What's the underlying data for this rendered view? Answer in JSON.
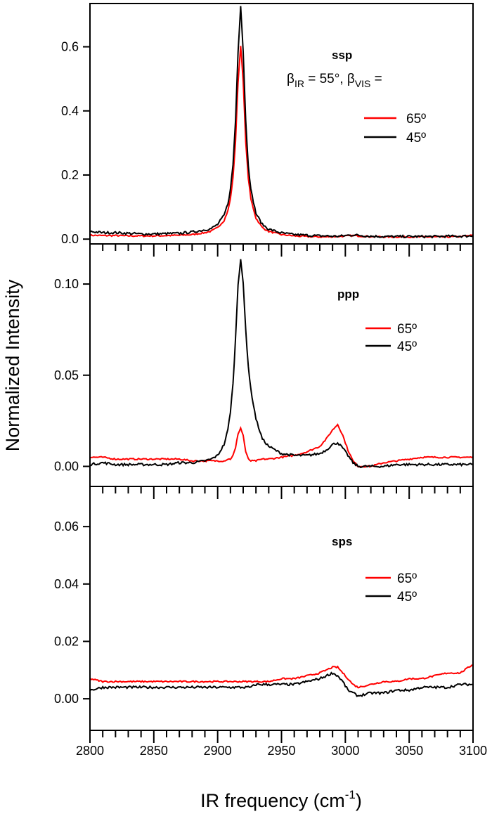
{
  "chart_data": [
    {
      "type": "line",
      "panel_label": "ssp",
      "annotation": {
        "beta": "β",
        "ir_sub": "IR",
        "ir_text": " = 55°,  ",
        "vis_sub": "VIS",
        "vis_text": " ="
      },
      "ylim": [
        -0.015,
        0.735
      ],
      "yticks": [
        0.0,
        0.2,
        0.4,
        0.6
      ],
      "ytick_labels": [
        "0.0",
        "0.2",
        "0.4",
        "0.6"
      ],
      "legend_placement": "right",
      "x": [
        2800,
        2810,
        2820,
        2830,
        2840,
        2850,
        2860,
        2870,
        2880,
        2890,
        2895,
        2900,
        2905,
        2908,
        2910,
        2912,
        2914,
        2916,
        2918,
        2920,
        2922,
        2924,
        2926,
        2930,
        2935,
        2940,
        2950,
        2960,
        2970,
        2980,
        2985,
        2990,
        2994,
        2998,
        3002,
        3006,
        3010,
        3020,
        3030,
        3040,
        3050,
        3060,
        3070,
        3080,
        3090,
        3100
      ],
      "series": [
        {
          "name": "65º",
          "color": "#ff0000",
          "values": [
            0.012,
            0.011,
            0.011,
            0.01,
            0.01,
            0.01,
            0.011,
            0.012,
            0.014,
            0.02,
            0.025,
            0.036,
            0.058,
            0.088,
            0.125,
            0.19,
            0.305,
            0.49,
            0.605,
            0.49,
            0.305,
            0.19,
            0.125,
            0.065,
            0.036,
            0.024,
            0.014,
            0.01,
            0.008,
            0.007,
            0.007,
            0.008,
            0.008,
            0.009,
            0.01,
            0.011,
            0.01,
            0.008,
            0.007,
            0.007,
            0.007,
            0.007,
            0.007,
            0.007,
            0.008,
            0.012
          ]
        },
        {
          "name": "45º",
          "color": "#000000",
          "values": [
            0.024,
            0.02,
            0.02,
            0.018,
            0.016,
            0.016,
            0.017,
            0.018,
            0.022,
            0.029,
            0.033,
            0.046,
            0.074,
            0.111,
            0.154,
            0.232,
            0.37,
            0.586,
            0.73,
            0.586,
            0.37,
            0.232,
            0.154,
            0.08,
            0.046,
            0.031,
            0.019,
            0.014,
            0.012,
            0.01,
            0.01,
            0.009,
            0.009,
            0.01,
            0.012,
            0.013,
            0.012,
            0.009,
            0.008,
            0.008,
            0.008,
            0.008,
            0.008,
            0.009,
            0.009,
            0.01
          ]
        }
      ]
    },
    {
      "type": "line",
      "panel_label": "ppp",
      "ylim": [
        -0.011,
        0.122
      ],
      "yticks": [
        0.0,
        0.05,
        0.1
      ],
      "ytick_labels": [
        "0.00",
        "0.05",
        "0.10"
      ],
      "legend_placement": "right",
      "x": [
        2800,
        2810,
        2820,
        2830,
        2840,
        2850,
        2860,
        2870,
        2880,
        2890,
        2895,
        2900,
        2905,
        2908,
        2910,
        2912,
        2914,
        2916,
        2918,
        2920,
        2922,
        2924,
        2926,
        2930,
        2935,
        2940,
        2950,
        2960,
        2970,
        2980,
        2985,
        2990,
        2994,
        2998,
        3002,
        3006,
        3010,
        3020,
        3030,
        3040,
        3050,
        3060,
        3070,
        3080,
        3090,
        3100
      ],
      "series": [
        {
          "name": "65º",
          "color": "#ff0000",
          "values": [
            0.005,
            0.005,
            0.004,
            0.004,
            0.004,
            0.004,
            0.004,
            0.004,
            0.003,
            0.003,
            0.003,
            0.003,
            0.003,
            0.004,
            0.004,
            0.006,
            0.01,
            0.018,
            0.021,
            0.017,
            0.008,
            0.004,
            0.003,
            0.003,
            0.004,
            0.004,
            0.005,
            0.006,
            0.008,
            0.011,
            0.015,
            0.02,
            0.023,
            0.017,
            0.009,
            0.003,
            0.0,
            0.0,
            0.002,
            0.003,
            0.004,
            0.005,
            0.005,
            0.005,
            0.005,
            0.005
          ]
        },
        {
          "name": "45º",
          "color": "#000000",
          "values": [
            0.001,
            0.002,
            0.001,
            0.001,
            0.001,
            0.001,
            0.001,
            0.002,
            0.002,
            0.003,
            0.004,
            0.006,
            0.012,
            0.02,
            0.03,
            0.045,
            0.07,
            0.1,
            0.114,
            0.1,
            0.075,
            0.055,
            0.042,
            0.026,
            0.015,
            0.011,
            0.007,
            0.006,
            0.006,
            0.007,
            0.009,
            0.012,
            0.013,
            0.01,
            0.006,
            0.002,
            0.0,
            0.0,
            0.0,
            0.001,
            0.001,
            0.001,
            0.001,
            0.001,
            0.001,
            0.001
          ]
        }
      ]
    },
    {
      "type": "line",
      "panel_label": "sps",
      "ylim": [
        -0.011,
        0.074
      ],
      "yticks": [
        0.0,
        0.02,
        0.04,
        0.06
      ],
      "ytick_labels": [
        "0.00",
        "0.02",
        "0.04",
        "0.06"
      ],
      "legend_placement": "right",
      "xlabel": "IR frequency (cm",
      "xlabel_sup": "-1",
      "xlabel_end": ")",
      "xlim": [
        2800,
        3100
      ],
      "xticks": [
        2800,
        2850,
        2900,
        2950,
        3000,
        3050,
        3100
      ],
      "xtick_labels": [
        "2800",
        "2850",
        "2900",
        "2950",
        "3000",
        "3050",
        "3100"
      ],
      "x": [
        2800,
        2810,
        2820,
        2830,
        2840,
        2850,
        2860,
        2870,
        2880,
        2890,
        2895,
        2900,
        2905,
        2908,
        2910,
        2912,
        2914,
        2916,
        2918,
        2920,
        2922,
        2924,
        2926,
        2930,
        2935,
        2940,
        2950,
        2960,
        2970,
        2980,
        2985,
        2990,
        2994,
        2998,
        3002,
        3006,
        3010,
        3020,
        3030,
        3040,
        3050,
        3060,
        3070,
        3080,
        3090,
        3100
      ],
      "series": [
        {
          "name": "65º",
          "color": "#ff0000",
          "values": [
            0.007,
            0.006,
            0.006,
            0.006,
            0.006,
            0.006,
            0.006,
            0.006,
            0.006,
            0.006,
            0.006,
            0.006,
            0.006,
            0.006,
            0.006,
            0.006,
            0.006,
            0.006,
            0.006,
            0.006,
            0.006,
            0.006,
            0.006,
            0.006,
            0.006,
            0.006,
            0.007,
            0.007,
            0.008,
            0.009,
            0.01,
            0.011,
            0.011,
            0.009,
            0.007,
            0.005,
            0.004,
            0.005,
            0.006,
            0.006,
            0.007,
            0.007,
            0.008,
            0.009,
            0.009,
            0.012
          ]
        },
        {
          "name": "45º",
          "color": "#000000",
          "values": [
            0.003,
            0.004,
            0.004,
            0.004,
            0.004,
            0.004,
            0.004,
            0.004,
            0.004,
            0.004,
            0.004,
            0.004,
            0.004,
            0.004,
            0.004,
            0.004,
            0.004,
            0.004,
            0.004,
            0.004,
            0.004,
            0.004,
            0.004,
            0.005,
            0.005,
            0.005,
            0.005,
            0.005,
            0.006,
            0.007,
            0.008,
            0.009,
            0.008,
            0.006,
            0.003,
            0.002,
            0.001,
            0.002,
            0.002,
            0.003,
            0.003,
            0.004,
            0.004,
            0.004,
            0.005,
            0.005
          ]
        }
      ]
    }
  ],
  "ylabel": "Normalized Intensity"
}
